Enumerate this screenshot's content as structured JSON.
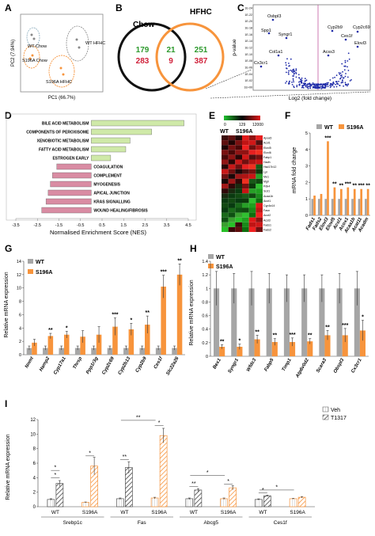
{
  "panels": {
    "A": {
      "letter": "A",
      "xlabel": "PC1 (66.7%)",
      "ylabel": "PC2 (7.94%)",
      "groups": [
        "WT Chow",
        "S196A Chow",
        "WT HFHC",
        "S196A HFHC"
      ]
    },
    "B": {
      "letter": "B",
      "left": "Chow",
      "right": "HFHC",
      "top_counts": {
        "left": "179",
        "mid": "21",
        "right": "251"
      },
      "bottom_counts": {
        "left": "283",
        "mid": "9",
        "right": "387"
      }
    },
    "C": {
      "letter": "C",
      "xlabel": "Log2 (fold change)",
      "ylabel": "p-value",
      "genes": [
        "Osbpl3",
        "Spp1",
        "Syngr1",
        "Col1a1",
        "Cx3cr1",
        "Cyp2b9",
        "Cyp2c69",
        "Ces1f",
        "Elovl3",
        "Acss3"
      ]
    },
    "D": {
      "letter": "D",
      "xlabel": "Normalised Enrichment Score (NES)",
      "ticks": [
        "-3.5",
        "-2.5",
        "-1.5",
        "-0.5",
        "0.5",
        "1.5",
        "2.5",
        "3.5",
        "4.5"
      ],
      "colors": {
        "positive": "#cfe9a8",
        "negative": "#d98ca3"
      }
    },
    "E": {
      "letter": "E",
      "scale": [
        "0",
        "129",
        "12000"
      ],
      "cols": [
        "WT",
        "S196A"
      ],
      "genes": [
        "Apoa5",
        "Acsl1",
        "Elovl5",
        "Elovl6",
        "Fabp1",
        "Hadh",
        "Hsd17b12",
        "Lpl",
        "Me1",
        "Mgll",
        "Pdk4",
        "Scd1",
        "Acaa1b",
        "Acot1",
        "Cyp4a14",
        "Fasn",
        "Acot2",
        "Acsl3",
        "Fads1",
        "Fads2"
      ]
    },
    "F": {
      "letter": "F",
      "ylabel": "mRNA fold change",
      "legend": [
        "WT",
        "S196A"
      ],
      "colors": {
        "wt": "#a6a6a6",
        "mut": "#f7943c"
      }
    },
    "G": {
      "letter": "G",
      "ylabel": "Relative mRNA expression",
      "legend": [
        "WT",
        "S196A"
      ]
    },
    "H": {
      "letter": "H",
      "ylabel": "Relative mRNA expression",
      "legend": [
        "WT",
        "S196A"
      ]
    },
    "I": {
      "letter": "I",
      "ylabel": "Relative mRNA expression",
      "legend": [
        "Veh",
        "T1317"
      ],
      "genes": [
        "Srebp1c",
        "Fas",
        "Abcg5",
        "Ces1f"
      ],
      "genotypes": [
        "WT",
        "S196A"
      ]
    }
  },
  "chart_data": [
    {
      "type": "scatter",
      "panel": "A",
      "xlabel": "PC1 (66.7%)",
      "ylabel": "PC2 (7.94%)",
      "series": [
        {
          "name": "WT Chow"
        },
        {
          "name": "S196A Chow"
        },
        {
          "name": "WT HFHC"
        },
        {
          "name": "S196A HFHC"
        }
      ]
    },
    {
      "type": "scatter",
      "panel": "C",
      "xlabel": "Log2 (fold change)",
      "ylabel": "p-value",
      "y_ticks": [
        "1E-24",
        "1E-22",
        "1E-20",
        "1E-18",
        "1E-16",
        "1E-14",
        "1E-12",
        "1E-10",
        "1E-08",
        "1E-06",
        "1E-04",
        "1E-02",
        "1E+00"
      ]
    },
    {
      "type": "bar",
      "panel": "D",
      "xlabel": "Normalised Enrichment Score (NES)",
      "xlim": [
        -3.5,
        4.5
      ],
      "categories": [
        "BILE ACID METABOLISM",
        "COMPONENTS OF PEROXISOME",
        "XENOBIOTIC METABOLISM",
        "FATTY ACID METABOLISM",
        "ESTROGEN EARLY",
        "COAGULATION",
        "COMPLEMENT",
        "MYOGENESIS",
        "APICAL JUNCTION",
        "KRAS SIGNALLING",
        "WOUND HEALING/FIBROSIS"
      ],
      "values": [
        4.3,
        2.8,
        1.8,
        1.6,
        0.9,
        -1.6,
        -1.8,
        -1.9,
        -2.0,
        -2.1,
        -2.3
      ]
    },
    {
      "type": "heatmap",
      "panel": "E",
      "rows": [
        "Apoa5",
        "Acsl1",
        "Elovl5",
        "Elovl6",
        "Fabp1",
        "Hadh",
        "Hsd17b12",
        "Lpl",
        "Me1",
        "Mgll",
        "Pdk4",
        "Scd1",
        "Acaa1b",
        "Acot1",
        "Cyp4a14",
        "Fasn",
        "Acot2",
        "Acsl3",
        "Fads1",
        "Fads2"
      ],
      "columns": [
        "WT",
        "S196A"
      ]
    },
    {
      "type": "bar",
      "panel": "F",
      "ylabel": "mRNA fold change",
      "ylim": [
        0,
        5
      ],
      "yticks": [
        0,
        1,
        2,
        3,
        4,
        5
      ],
      "categories": [
        "Fads1",
        "Fads2",
        "Elovl3",
        "Elovl5",
        "Acsl1",
        "Acox1",
        "Acaa1b",
        "Acat11",
        "Acadm"
      ],
      "series": [
        {
          "name": "WT",
          "values": [
            1,
            1,
            1,
            1,
            1,
            1,
            1,
            1,
            1
          ]
        },
        {
          "name": "S196A",
          "values": [
            1.2,
            1.3,
            4.5,
            1.7,
            1.6,
            1.7,
            1.6,
            1.6,
            1.6
          ]
        }
      ],
      "significance": [
        "",
        "",
        "***",
        "**",
        "**",
        "***",
        "**",
        "***",
        "**"
      ]
    },
    {
      "type": "bar",
      "panel": "G",
      "ylabel": "Relative mRNA expression",
      "ylim": [
        0,
        14
      ],
      "yticks": [
        0,
        2,
        4,
        6,
        8,
        10,
        12,
        14
      ],
      "categories": [
        "Nnmt",
        "Hamp2",
        "Cyp17a1",
        "Thrsp",
        "Ppp1r3g",
        "Cyp2c69",
        "Cyp2b13",
        "Cyp2b9",
        "Ces1f",
        "Slc22a26"
      ],
      "series": [
        {
          "name": "WT",
          "values": [
            1,
            1,
            1,
            1,
            1,
            1,
            1,
            1,
            1,
            1
          ]
        },
        {
          "name": "S196A",
          "values": [
            1.8,
            2.8,
            3.0,
            2.7,
            3.0,
            4.2,
            3.8,
            4.5,
            10.2,
            12.0
          ]
        }
      ],
      "errors": [
        0.5,
        0.4,
        0.5,
        0.9,
        1.2,
        1.3,
        0.9,
        1.3,
        1.7,
        1.6
      ],
      "significance": [
        "",
        "**",
        "*",
        "",
        "",
        "***",
        "*",
        "**",
        "***",
        "**"
      ]
    },
    {
      "type": "bar",
      "panel": "H",
      "ylabel": "Relative mRNA expression",
      "ylim": [
        0,
        1.4
      ],
      "yticks": [
        0,
        0.2,
        0.4,
        0.6,
        0.8,
        1,
        1.2,
        1.4
      ],
      "categories": [
        "Bex1",
        "Syngr1",
        "Wfdc3",
        "Fabp5",
        "Timp1",
        "Atp6v0d2",
        "Scara3",
        "Obspl3",
        "Cx3cr1"
      ],
      "series": [
        {
          "name": "WT",
          "values": [
            1,
            1,
            1,
            1,
            1,
            1,
            1,
            1,
            1
          ]
        },
        {
          "name": "S196A",
          "values": [
            0.14,
            0.14,
            0.25,
            0.21,
            0.21,
            0.22,
            0.31,
            0.31,
            0.38
          ]
        }
      ],
      "significance": [
        "**",
        "*",
        "**",
        "**",
        "***",
        "**",
        "**",
        "***",
        "*"
      ]
    },
    {
      "type": "bar",
      "panel": "I",
      "ylabel": "Relative mRNA expression",
      "ylim": [
        0,
        12
      ],
      "yticks": [
        0,
        2,
        4,
        6,
        8,
        10,
        12
      ],
      "categories": [
        "Srebp1c WT",
        "Srebp1c S196A",
        "Fas WT",
        "Fas S196A",
        "Abcg5 WT",
        "Abcg5 S196A",
        "Ces1f WT",
        "Ces1f S196A"
      ],
      "series": [
        {
          "name": "Veh",
          "values": [
            1.0,
            0.6,
            1.1,
            1.2,
            1.1,
            1.1,
            1.0,
            1.1
          ]
        },
        {
          "name": "T1317",
          "values": [
            3.2,
            5.6,
            5.4,
            9.8,
            2.3,
            2.6,
            1.5,
            1.3
          ]
        }
      ]
    }
  ]
}
